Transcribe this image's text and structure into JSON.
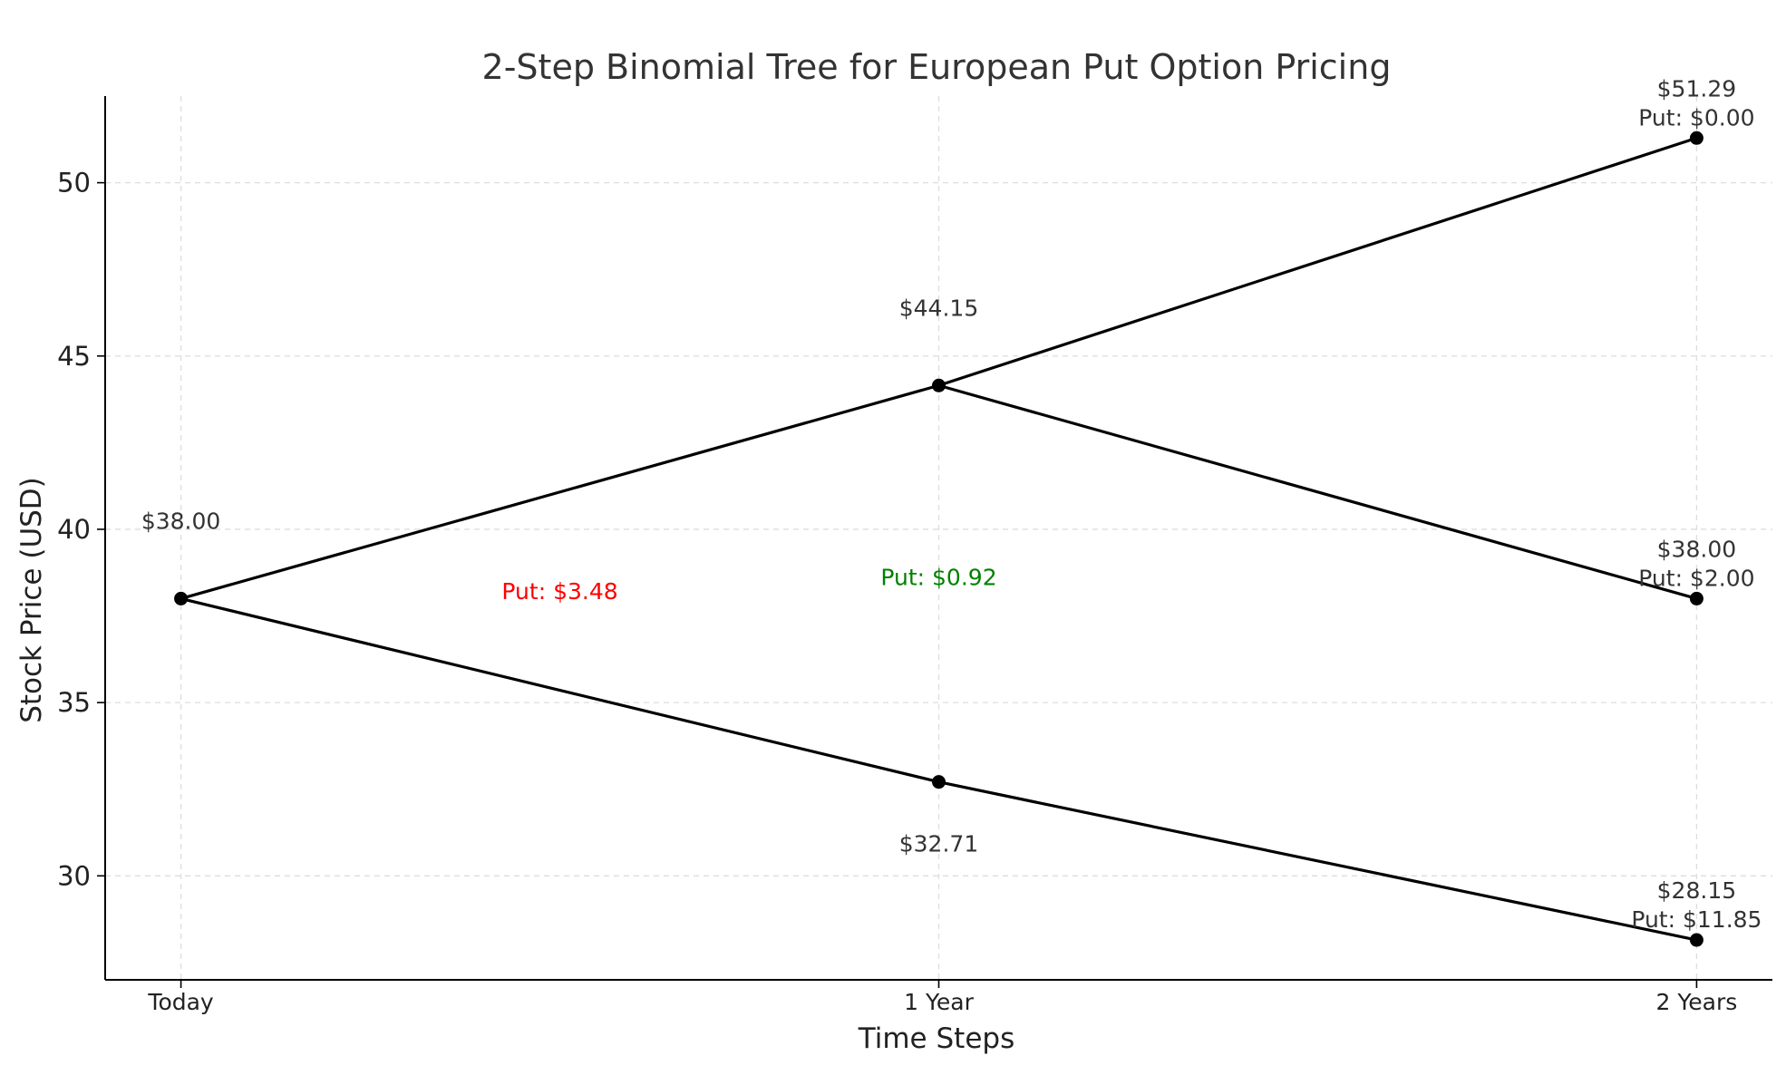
{
  "chart_data": {
    "type": "line",
    "title": "2-Step Binomial Tree for European Put Option Pricing",
    "xlabel": "Time Steps",
    "ylabel": "Stock Price (USD)",
    "grid": true,
    "x_ticks": [
      {
        "x": 0,
        "label": "Today"
      },
      {
        "x": 1,
        "label": "1 Year"
      },
      {
        "x": 2,
        "label": "2 Years"
      }
    ],
    "y_ticks": [
      30,
      35,
      40,
      45,
      50
    ],
    "xlim": [
      -0.1,
      2.1
    ],
    "ylim": [
      27.0,
      52.5
    ],
    "nodes": [
      {
        "id": "s0",
        "x": 0,
        "y": 38.0,
        "label": "$38.00"
      },
      {
        "id": "su",
        "x": 1,
        "y": 44.15,
        "label": "$44.15"
      },
      {
        "id": "sd",
        "x": 1,
        "y": 32.71,
        "label": "$32.71"
      },
      {
        "id": "suu",
        "x": 2,
        "y": 51.29,
        "label": "$51.29",
        "put_label": "Put: $0.00"
      },
      {
        "id": "sud",
        "x": 2,
        "y": 38.0,
        "label": "$38.00",
        "put_label": "Put: $2.00"
      },
      {
        "id": "sdd",
        "x": 2,
        "y": 28.15,
        "label": "$28.15",
        "put_label": "Put: $11.85"
      }
    ],
    "edges": [
      [
        "s0",
        "su"
      ],
      [
        "s0",
        "sd"
      ],
      [
        "su",
        "suu"
      ],
      [
        "su",
        "sud"
      ],
      [
        "sd",
        "sdd"
      ]
    ],
    "annotations": [
      {
        "text": "Put: $3.48",
        "x": 0.5,
        "y": 38.2,
        "color": "#ff0000"
      },
      {
        "text": "Put: $0.92",
        "x": 1.0,
        "y": 38.6,
        "color": "#008000"
      }
    ]
  }
}
